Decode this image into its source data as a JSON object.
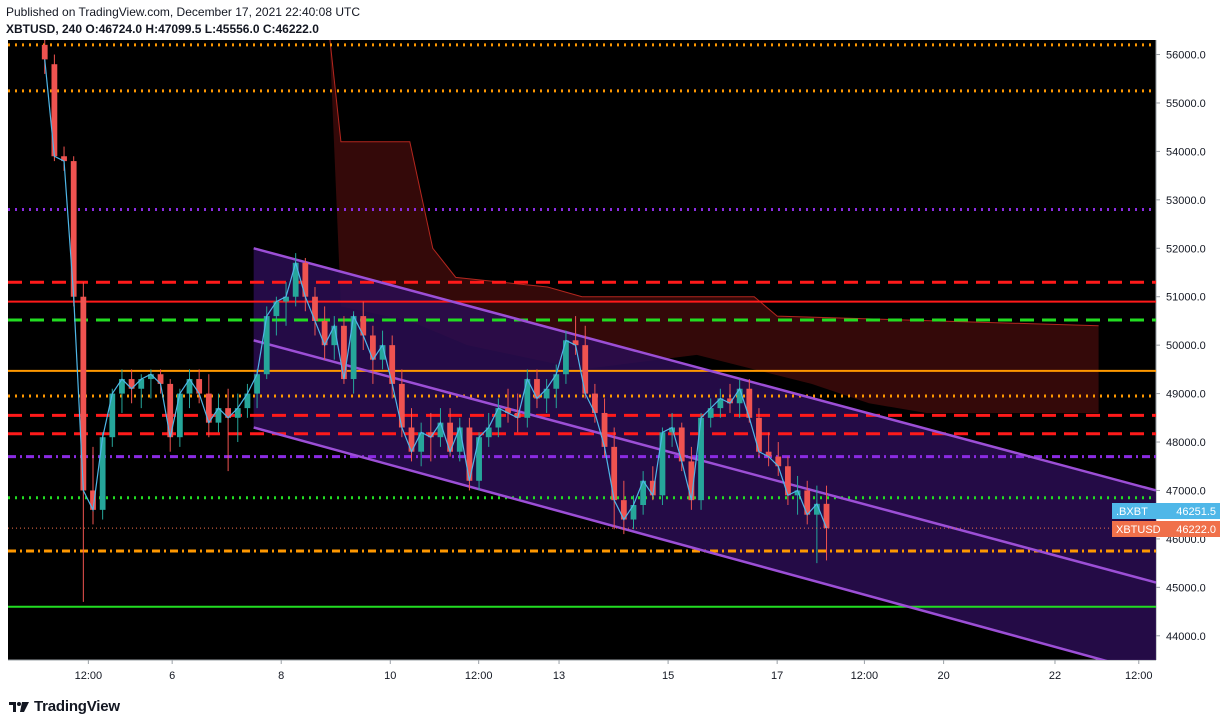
{
  "header": {
    "published": "Published on TradingView.com, December 17, 2021 22:40:08 UTC",
    "symbol": "XBTUSD, 240",
    "ohlc": "O:46724.0 H:47099.5 L:45556.0 C:46222.0"
  },
  "footer": {
    "brand": "TradingView"
  },
  "colors": {
    "background": "#000000",
    "up": "#26a69a",
    "down": "#ef5350",
    "channel": "#9c4fd6",
    "channel_fill": "#2a0d52",
    "cloud_fill": "#3a0a0a"
  },
  "chart_data": {
    "type": "candlestick",
    "symbol": "XBTUSD",
    "interval": "240",
    "ylim": [
      43500,
      56300
    ],
    "y_ticks": [
      "56000.0",
      "55000.0",
      "54000.0",
      "53000.0",
      "52000.0",
      "51000.0",
      "50000.0",
      "49000.0",
      "48000.0",
      "47000.0",
      "46000.0",
      "45000.0",
      "44000.0"
    ],
    "x_ticks": [
      "12:00",
      "6",
      "8",
      "10",
      "12:00",
      "13",
      "15",
      "17",
      "12:00",
      "20",
      "22",
      "12:00"
    ],
    "price_labels": [
      {
        "label": ".BXBT",
        "value": "46251.5",
        "color": "#4fb7e8"
      },
      {
        "label": "XBTUSD",
        "value": "46222.0",
        "color": "#f0704a"
      }
    ],
    "horizontal_levels": [
      {
        "price": 56200,
        "color": "#ff9800",
        "style": "dotted"
      },
      {
        "price": 55250,
        "color": "#ff9800",
        "style": "dotted"
      },
      {
        "price": 52800,
        "color": "#8a2be2",
        "style": "dotted"
      },
      {
        "price": 51300,
        "color": "#ff1a1a",
        "style": "dashed"
      },
      {
        "price": 50900,
        "color": "#ff1a1a",
        "style": "solid"
      },
      {
        "price": 50520,
        "color": "#22dd22",
        "style": "dashed"
      },
      {
        "price": 49470,
        "color": "#ff9800",
        "style": "solid"
      },
      {
        "price": 48950,
        "color": "#ff9800",
        "style": "dotted"
      },
      {
        "price": 48550,
        "color": "#ff1a1a",
        "style": "dashed"
      },
      {
        "price": 48170,
        "color": "#ff1a1a",
        "style": "dashed"
      },
      {
        "price": 47700,
        "color": "#8a2be2",
        "style": "dashdot"
      },
      {
        "price": 46850,
        "color": "#22dd22",
        "style": "dotted"
      },
      {
        "price": 45750,
        "color": "#ff9800",
        "style": "dashdot"
      },
      {
        "price": 44600,
        "color": "#22dd22",
        "style": "solid"
      }
    ],
    "channel_lines": [
      {
        "name": "upper",
        "from": [
          0.214,
          52000
        ],
        "to": [
          1.0,
          47000
        ]
      },
      {
        "name": "middle",
        "from": [
          0.214,
          50100
        ],
        "to": [
          1.0,
          45100
        ]
      },
      {
        "name": "lower",
        "from": [
          0.214,
          48300
        ],
        "to": [
          1.0,
          43200
        ]
      }
    ],
    "candles": [
      [
        56200,
        56300,
        55600,
        55900
      ],
      [
        55800,
        56000,
        53800,
        53900
      ],
      [
        53900,
        54100,
        53600,
        53800
      ],
      [
        53800,
        53900,
        50800,
        51000
      ],
      [
        51000,
        51300,
        44700,
        47000
      ],
      [
        47000,
        47900,
        46300,
        46600
      ],
      [
        46600,
        48200,
        46400,
        48100
      ],
      [
        48100,
        49100,
        47900,
        49000
      ],
      [
        49000,
        49500,
        48600,
        49300
      ],
      [
        49300,
        49500,
        48800,
        49100
      ],
      [
        49100,
        49400,
        48700,
        49300
      ],
      [
        49300,
        49500,
        48900,
        49400
      ],
      [
        49400,
        49500,
        49000,
        49200
      ],
      [
        49200,
        49300,
        47800,
        48100
      ],
      [
        48100,
        49100,
        47900,
        49000
      ],
      [
        49000,
        49500,
        48700,
        49300
      ],
      [
        49300,
        49500,
        48800,
        49000
      ],
      [
        49000,
        49400,
        48100,
        48400
      ],
      [
        48400,
        49000,
        48200,
        48700
      ],
      [
        48700,
        49100,
        47400,
        48500
      ],
      [
        48500,
        49000,
        48000,
        48700
      ],
      [
        48700,
        49200,
        48500,
        49000
      ],
      [
        49000,
        49500,
        48700,
        49400
      ],
      [
        49400,
        50800,
        49300,
        50600
      ],
      [
        50600,
        51000,
        50200,
        50900
      ],
      [
        50900,
        51300,
        50400,
        51000
      ],
      [
        51000,
        51900,
        50800,
        51700
      ],
      [
        51700,
        51800,
        50700,
        51000
      ],
      [
        51000,
        51200,
        50200,
        50500
      ],
      [
        50500,
        50800,
        49700,
        50000
      ],
      [
        50000,
        50600,
        49700,
        50400
      ],
      [
        50400,
        50600,
        49200,
        49300
      ],
      [
        49300,
        50700,
        49000,
        50600
      ],
      [
        50600,
        50900,
        49900,
        50200
      ],
      [
        50200,
        50400,
        49200,
        49700
      ],
      [
        49700,
        50300,
        49500,
        50000
      ],
      [
        50000,
        50200,
        48900,
        49200
      ],
      [
        49200,
        49500,
        48100,
        48300
      ],
      [
        48300,
        48700,
        47600,
        47800
      ],
      [
        47800,
        48400,
        47500,
        48200
      ],
      [
        48200,
        48600,
        47600,
        48100
      ],
      [
        48100,
        48700,
        47900,
        48400
      ],
      [
        48400,
        48700,
        47700,
        47800
      ],
      [
        47800,
        48500,
        47600,
        48300
      ],
      [
        48300,
        48500,
        47000,
        47200
      ],
      [
        47200,
        48200,
        47000,
        48100
      ],
      [
        48100,
        48600,
        47900,
        48300
      ],
      [
        48300,
        48900,
        48100,
        48700
      ],
      [
        48700,
        49100,
        48400,
        48600
      ],
      [
        48600,
        49000,
        48200,
        48500
      ],
      [
        48500,
        49500,
        48300,
        49300
      ],
      [
        49300,
        49500,
        48700,
        48900
      ],
      [
        48900,
        49300,
        48600,
        49100
      ],
      [
        49100,
        49600,
        48700,
        49400
      ],
      [
        49400,
        50300,
        49200,
        50100
      ],
      [
        50100,
        50600,
        49800,
        50000
      ],
      [
        50000,
        50400,
        48900,
        49000
      ],
      [
        49000,
        49200,
        48400,
        48600
      ],
      [
        48600,
        48900,
        47700,
        47900
      ],
      [
        47900,
        48300,
        46200,
        46800
      ],
      [
        46800,
        47200,
        46100,
        46400
      ],
      [
        46400,
        46900,
        46200,
        46700
      ],
      [
        46700,
        47400,
        46500,
        47200
      ],
      [
        47200,
        47500,
        46800,
        46900
      ],
      [
        46900,
        48300,
        46700,
        48200
      ],
      [
        48200,
        48600,
        47900,
        48300
      ],
      [
        48300,
        48400,
        47400,
        47600
      ],
      [
        47600,
        47900,
        46600,
        46800
      ],
      [
        46800,
        48600,
        46600,
        48500
      ],
      [
        48500,
        48900,
        48300,
        48700
      ],
      [
        48700,
        49100,
        48500,
        48900
      ],
      [
        48900,
        49200,
        48600,
        48800
      ],
      [
        48800,
        49300,
        48500,
        49100
      ],
      [
        49100,
        49300,
        48400,
        48500
      ],
      [
        48500,
        48700,
        47700,
        47800
      ],
      [
        47800,
        48200,
        47500,
        47700
      ],
      [
        47700,
        48000,
        47300,
        47500
      ],
      [
        47500,
        47700,
        46700,
        46900
      ],
      [
        46900,
        47300,
        46500,
        47000
      ],
      [
        47000,
        47200,
        46300,
        46500
      ],
      [
        46500,
        47100,
        45500,
        46724
      ],
      [
        46724,
        47099.5,
        45556,
        46222
      ]
    ]
  }
}
